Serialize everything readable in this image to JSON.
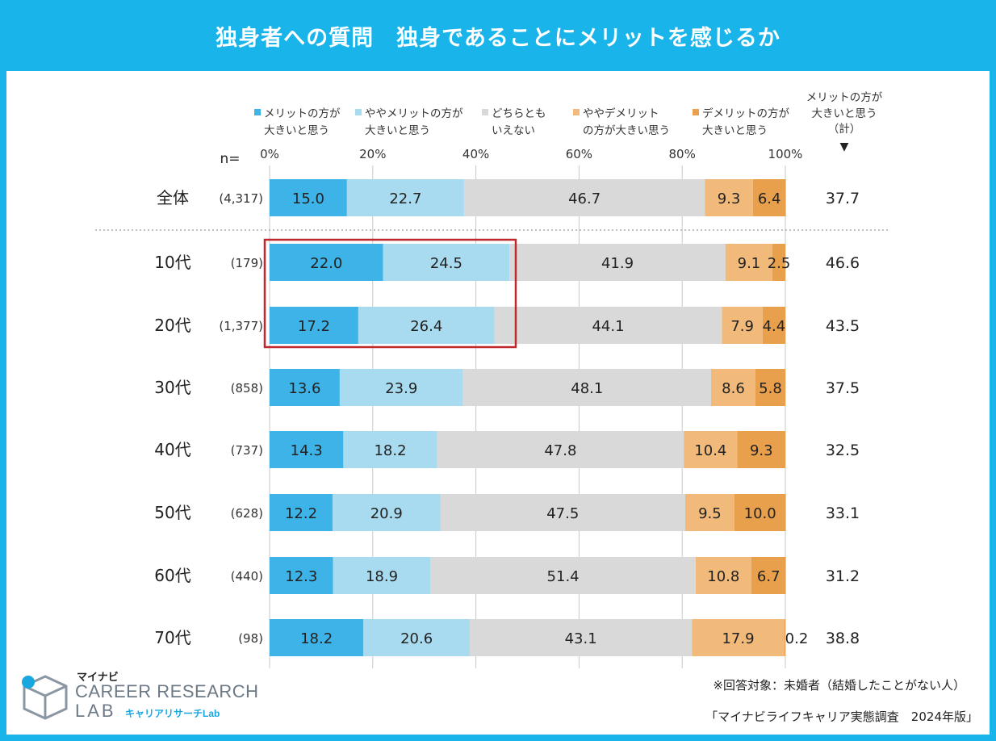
{
  "title": "独身者への質問　独身であることにメリットを感じるか",
  "chart_data": {
    "type": "bar",
    "orientation": "horizontal",
    "stacked": true,
    "xlim": [
      0,
      100
    ],
    "ticks": [
      "0%",
      "20%",
      "40%",
      "60%",
      "80%",
      "100%"
    ],
    "tick_values": [
      0,
      20,
      40,
      60,
      80,
      100
    ],
    "n_label": "n=",
    "legend": [
      {
        "line1": "メリットの方が",
        "line2": "大きいと思う",
        "color": "#3db3e8"
      },
      {
        "line1": "ややメリットの方が",
        "line2": "大きいと思う",
        "color": "#a9dbf0"
      },
      {
        "line1": "どちらとも",
        "line2": "いえない",
        "color": "#d9d9d9"
      },
      {
        "line1": "ややデメリット",
        "line2": "の方が大きい思う",
        "color": "#f1b97a"
      },
      {
        "line1": "デメリットの方が",
        "line2": "大きいと思う",
        "color": "#e9a04c"
      }
    ],
    "total_header": {
      "line1": "メリットの方が",
      "line2": "大きいと思う",
      "line3": "（計）",
      "arrow": "▼"
    },
    "series": [
      {
        "name": "メリットの方が大きいと思う",
        "values": [
          15.0,
          22.0,
          17.2,
          13.6,
          14.3,
          12.2,
          12.3,
          18.2
        ]
      },
      {
        "name": "ややメリットの方が大きいと思う",
        "values": [
          22.7,
          24.5,
          26.4,
          23.9,
          18.2,
          20.9,
          18.9,
          20.6
        ]
      },
      {
        "name": "どちらともいえない",
        "values": [
          46.7,
          41.9,
          44.1,
          48.1,
          47.8,
          47.5,
          51.4,
          43.1
        ]
      },
      {
        "name": "ややデメリットの方が大きい思う",
        "values": [
          9.3,
          9.1,
          7.9,
          8.6,
          10.4,
          9.5,
          10.8,
          17.9
        ]
      },
      {
        "name": "デメリットの方が大きいと思う",
        "values": [
          6.4,
          2.5,
          4.4,
          5.8,
          9.3,
          10.0,
          6.7,
          0.2
        ]
      }
    ],
    "rows": [
      {
        "category": "全体",
        "n": "(4,317)",
        "total": "37.7"
      },
      {
        "category": "10代",
        "n": "(179)",
        "total": "46.6"
      },
      {
        "category": "20代",
        "n": "(1,377)",
        "total": "43.5"
      },
      {
        "category": "30代",
        "n": "(858)",
        "total": "37.5"
      },
      {
        "category": "40代",
        "n": "(737)",
        "total": "32.5"
      },
      {
        "category": "50代",
        "n": "(628)",
        "total": "33.1"
      },
      {
        "category": "60代",
        "n": "(440)",
        "total": "31.2"
      },
      {
        "category": "70代",
        "n": "(98)",
        "total": "38.8"
      }
    ],
    "highlight_rows": [
      "10代",
      "20代"
    ],
    "highlight_color": "#c0282d"
  },
  "footer": {
    "note": "※回答対象：未婚者（結婚したことがない人）",
    "source": "「マイナビライフキャリア実態調査　2024年版」"
  },
  "logo": {
    "small": "マイナビ",
    "line1": "CAREER RESEARCH",
    "line2": "LAB",
    "sub": "キャリアリサーチLab"
  }
}
